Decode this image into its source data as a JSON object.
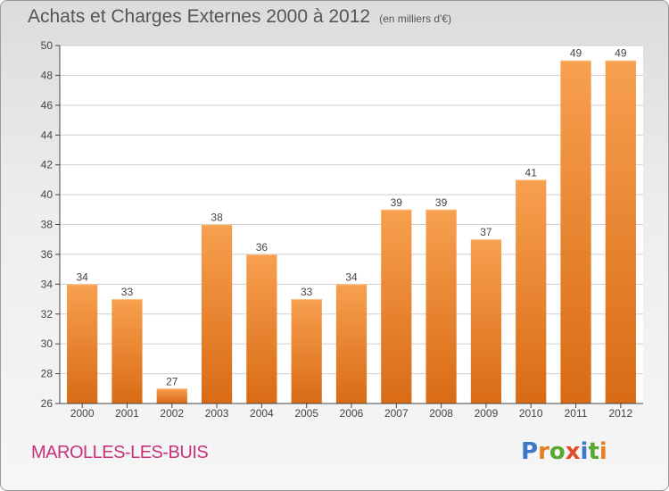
{
  "title": "Achats et Charges Externes 2000 à 2012",
  "subtitle": "(en milliers d'€)",
  "commune": "MAROLLES-LES-BUIS",
  "logo": {
    "text": "Proxiti",
    "letter_colors": [
      "#3a78c8",
      "#e67e22",
      "#5aa832",
      "#e24a2c",
      "#3a78c8",
      "#5aa832",
      "#e67e22"
    ]
  },
  "colors": {
    "bar_top": "#f7a04f",
    "bar_bottom": "#d96b15",
    "grid": "#cfcfcf",
    "axis": "#444444",
    "text": "#444444"
  },
  "chart_data": {
    "type": "bar",
    "categories": [
      "2000",
      "2001",
      "2002",
      "2003",
      "2004",
      "2005",
      "2006",
      "2007",
      "2008",
      "2009",
      "2010",
      "2011",
      "2012"
    ],
    "values": [
      34,
      33,
      27,
      38,
      36,
      33,
      34,
      39,
      39,
      37,
      41,
      49,
      49
    ],
    "value_labels": [
      "34",
      "33",
      "27",
      "38",
      "36",
      "33",
      "34",
      "39",
      "39",
      "37",
      "41",
      "49",
      "49"
    ],
    "ylim": [
      26,
      50
    ],
    "yticks": [
      26,
      28,
      30,
      32,
      34,
      36,
      38,
      40,
      42,
      44,
      46,
      48,
      50
    ],
    "grid": true,
    "xlabel": "",
    "ylabel": ""
  }
}
